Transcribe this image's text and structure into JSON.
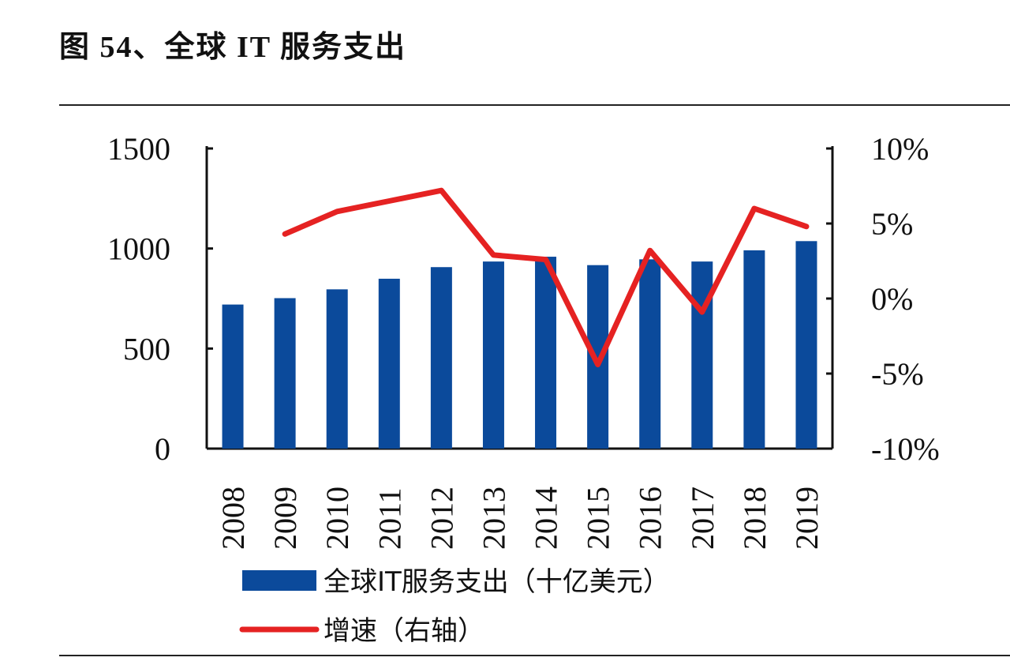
{
  "title": "图 54、全球 IT 服务支出",
  "chart_data": {
    "type": "bar+line",
    "title": "图 54、全球 IT 服务支出",
    "categories": [
      "2008",
      "2009",
      "2010",
      "2011",
      "2012",
      "2013",
      "2014",
      "2015",
      "2016",
      "2017",
      "2018",
      "2019"
    ],
    "series": [
      {
        "name": "全球IT服务支出（十亿美元）",
        "type": "bar",
        "axis": "left",
        "color": "#0B4A9B",
        "values": [
          720,
          752,
          796,
          849,
          907,
          935,
          959,
          917,
          946,
          935,
          991,
          1037
        ]
      },
      {
        "name": "增速（右轴）",
        "type": "line",
        "axis": "right",
        "color": "#E52222",
        "values": [
          null,
          4.3,
          5.8,
          6.5,
          7.2,
          2.9,
          2.6,
          -4.4,
          3.2,
          -0.9,
          6.0,
          4.8
        ]
      }
    ],
    "y_left": {
      "ylim": [
        0,
        1500
      ],
      "ticks": [
        "0",
        "500",
        "1000",
        "1500"
      ]
    },
    "y_right": {
      "ylim": [
        -10,
        10
      ],
      "ticks": [
        "-10%",
        "-5%",
        "0%",
        "5%",
        "10%"
      ]
    },
    "grid": false,
    "legend": "bottom"
  }
}
